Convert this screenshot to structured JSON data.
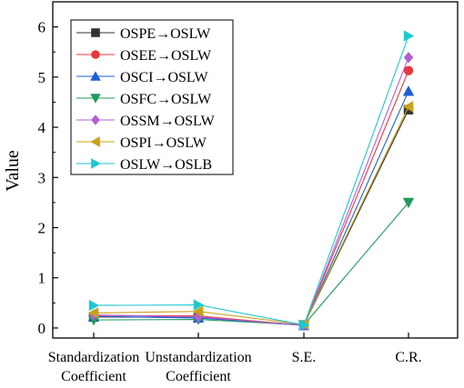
{
  "chart_data": {
    "type": "line",
    "ylabel": "Value",
    "xlabel": "",
    "ylim": [
      -0.2,
      6.5
    ],
    "yticks": [
      0,
      1,
      2,
      3,
      4,
      5,
      6
    ],
    "categories": [
      [
        "Standardization",
        "Coefficient"
      ],
      [
        "Unstandardization",
        "Coefficient"
      ],
      [
        "S.E."
      ],
      [
        "C.R."
      ]
    ],
    "legend_position": "top-left",
    "grid": false,
    "series": [
      {
        "name": "OSPE→OSLW",
        "color": "#333333",
        "marker": "square",
        "values": [
          0.22,
          0.21,
          0.06,
          4.35
        ]
      },
      {
        "name": "OSEE→OSLW",
        "color": "#e8383a",
        "marker": "circle",
        "values": [
          0.25,
          0.24,
          0.05,
          5.13
        ]
      },
      {
        "name": "OSCI→OSLW",
        "color": "#1e5fd6",
        "marker": "triangle-up",
        "values": [
          0.23,
          0.2,
          0.05,
          4.72
        ]
      },
      {
        "name": "OSFC→OSLW",
        "color": "#1f9a5a",
        "marker": "triangle-down",
        "values": [
          0.16,
          0.17,
          0.06,
          2.5
        ]
      },
      {
        "name": "OSSM→OSLW",
        "color": "#b25fd6",
        "marker": "diamond",
        "values": [
          0.26,
          0.22,
          0.05,
          5.39
        ]
      },
      {
        "name": "OSPI→OSLW",
        "color": "#c7a21a",
        "marker": "triangle-left",
        "values": [
          0.3,
          0.33,
          0.07,
          4.41
        ]
      },
      {
        "name": "OSLW→OSLB",
        "color": "#1fc7d0",
        "marker": "triangle-right",
        "values": [
          0.45,
          0.46,
          0.06,
          5.82
        ]
      }
    ]
  }
}
